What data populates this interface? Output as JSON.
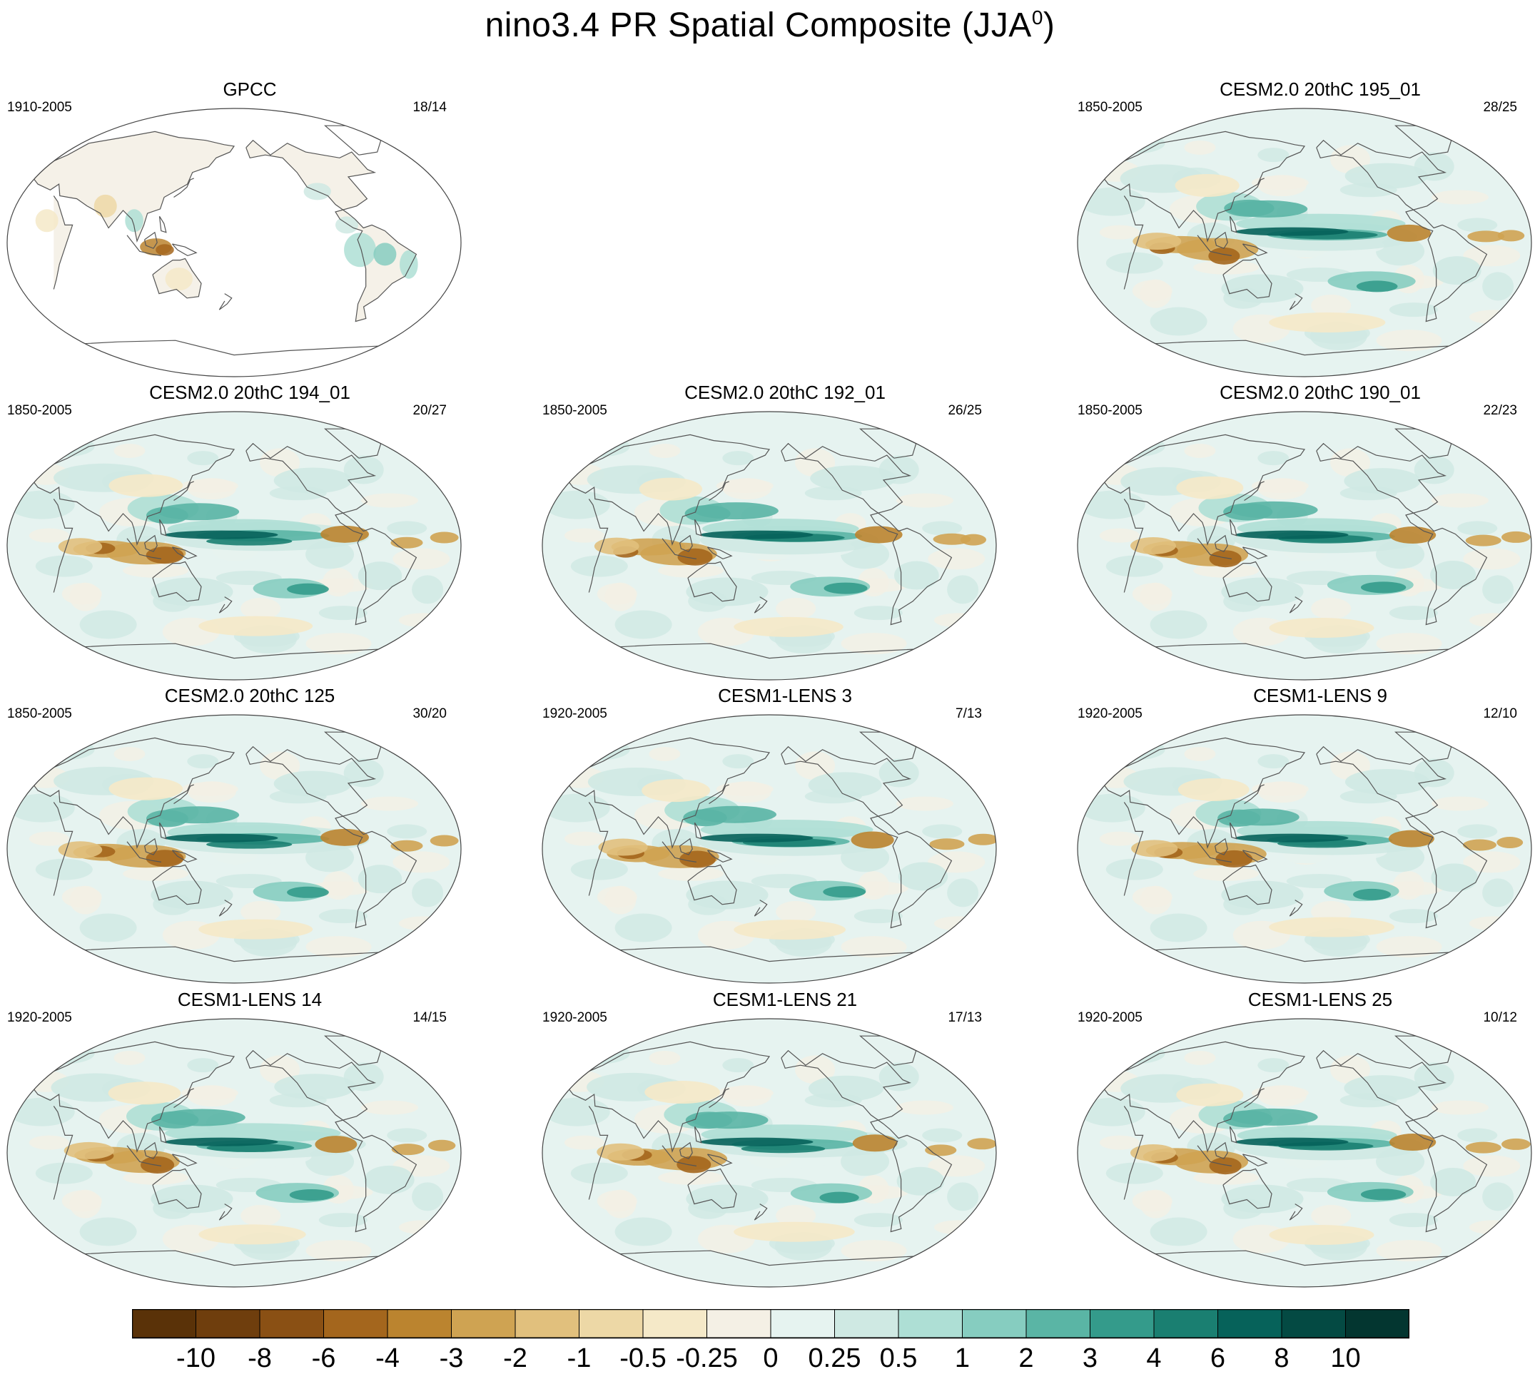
{
  "title": {
    "main": "nino3.4 PR Spatial Composite (JJA",
    "superscript": "0",
    "close": ")"
  },
  "chart_data": {
    "type": "heatmap",
    "variable": "PR",
    "index": "nino3.4",
    "season": "JJA",
    "panels": [
      {
        "id": "gpcc",
        "title": "GPCC",
        "period": "1910-2005",
        "count": "18/14",
        "style": "obs"
      },
      {
        "id": "empty",
        "title": "",
        "period": "",
        "count": "",
        "style": "none"
      },
      {
        "id": "c2-195",
        "title": "CESM2.0 20thC 195_01",
        "period": "1850-2005",
        "count": "28/25",
        "style": "model"
      },
      {
        "id": "c2-194",
        "title": "CESM2.0 20thC 194_01",
        "period": "1850-2005",
        "count": "20/27",
        "style": "model"
      },
      {
        "id": "c2-192",
        "title": "CESM2.0 20thC 192_01",
        "period": "1850-2005",
        "count": "26/25",
        "style": "model"
      },
      {
        "id": "c2-190",
        "title": "CESM2.0 20thC 190_01",
        "period": "1850-2005",
        "count": "22/23",
        "style": "model"
      },
      {
        "id": "c2-125",
        "title": "CESM2.0 20thC 125",
        "period": "1850-2005",
        "count": "30/20",
        "style": "model"
      },
      {
        "id": "lens-3",
        "title": "CESM1-LENS 3",
        "period": "1920-2005",
        "count": "7/13",
        "style": "model"
      },
      {
        "id": "lens-9",
        "title": "CESM1-LENS 9",
        "period": "1920-2005",
        "count": "12/10",
        "style": "model"
      },
      {
        "id": "lens-14",
        "title": "CESM1-LENS 14",
        "period": "1920-2005",
        "count": "14/15",
        "style": "model"
      },
      {
        "id": "lens-21",
        "title": "CESM1-LENS 21",
        "period": "1920-2005",
        "count": "17/13",
        "style": "model"
      },
      {
        "id": "lens-25",
        "title": "CESM1-LENS 25",
        "period": "1920-2005",
        "count": "10/12",
        "style": "model"
      }
    ],
    "colorbar": {
      "levels": [
        "-10",
        "-8",
        "-6",
        "-4",
        "-3",
        "-2",
        "-1",
        "-0.5",
        "-0.25",
        "0",
        "0.25",
        "0.5",
        "1",
        "2",
        "3",
        "4",
        "6",
        "8",
        "10"
      ],
      "colors": [
        "#5a3208",
        "#6f3e0d",
        "#8a5014",
        "#a4661d",
        "#bb842f",
        "#cfa352",
        "#e1c07d",
        "#edd8a6",
        "#f5e9c8",
        "#f4f0e5",
        "#e6f3f0",
        "#cfe9e3",
        "#aedfd5",
        "#86cdc0",
        "#5ab5a5",
        "#349b8b",
        "#1a7f71",
        "#06625a",
        "#044a43",
        "#033630"
      ]
    }
  }
}
